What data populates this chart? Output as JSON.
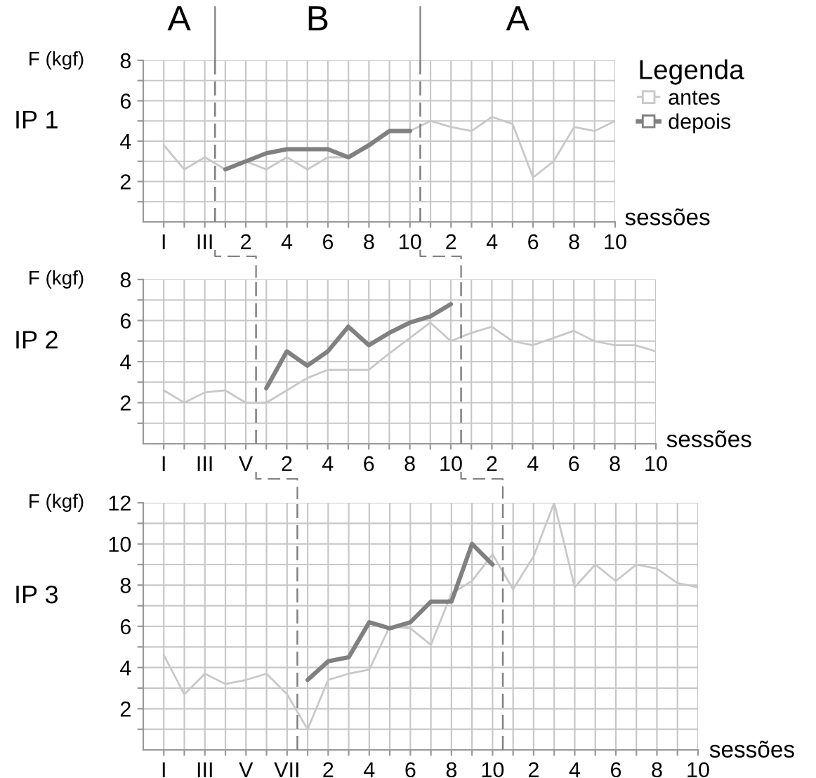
{
  "chart_data": [
    {
      "type": "line",
      "title": "IP 1",
      "ylabel": "F (kgf)",
      "xlabel": "sessões",
      "legend_title": "Legenda",
      "legend": "right",
      "grid": true,
      "line_style": "solid",
      "marker": "none",
      "annotations": [
        "A",
        "B",
        "A"
      ],
      "categories": [
        "I",
        null,
        "III",
        null,
        "2",
        null,
        "4",
        null,
        "6",
        null,
        "8",
        null,
        "10",
        null,
        "2",
        null,
        "4",
        null,
        "6",
        null,
        "8",
        null,
        "10"
      ],
      "ylim": [
        0,
        8
      ],
      "yticks": [
        {
          "value": 1,
          "label": null
        },
        2,
        {
          "value": 3,
          "label": null
        },
        4,
        {
          "value": 5,
          "label": null
        },
        6,
        {
          "value": 7,
          "label": null
        },
        8
      ],
      "series": [
        {
          "name": "antes",
          "color": "#c8c8c8",
          "values": [
            3.8,
            2.6,
            3.2,
            2.6,
            3.0,
            2.6,
            3.2,
            2.6,
            3.2,
            3.2,
            3.7,
            4.5,
            4.5,
            5.0,
            4.7,
            4.5,
            5.2,
            4.85,
            2.2,
            3.0,
            4.7,
            4.5,
            5.0
          ]
        },
        {
          "name": "depois",
          "color": "#808080",
          "values": [
            null,
            null,
            null,
            2.6,
            3.0,
            3.4,
            3.6,
            3.6,
            3.6,
            3.2,
            3.8,
            4.5,
            4.5,
            null,
            null,
            null,
            null,
            null,
            null,
            null,
            null,
            null,
            null
          ]
        }
      ]
    },
    {
      "type": "line",
      "title": "IP 2",
      "ylabel": "F (kgf)",
      "xlabel": "sessões",
      "grid": true,
      "line_style": "solid",
      "marker": "none",
      "categories": [
        "I",
        null,
        "III",
        null,
        "V",
        null,
        "2",
        null,
        "4",
        null,
        "6",
        null,
        "8",
        null,
        "10",
        null,
        "2",
        null,
        "4",
        null,
        "6",
        null,
        "8",
        null,
        "10"
      ],
      "ylim": [
        0,
        8
      ],
      "yticks": [
        {
          "value": 1,
          "label": null
        },
        2,
        {
          "value": 3,
          "label": null
        },
        4,
        {
          "value": 5,
          "label": null
        },
        6,
        {
          "value": 7,
          "label": null
        },
        8
      ],
      "series": [
        {
          "color": "#c8c8c8",
          "values": [
            2.6,
            2.0,
            2.5,
            2.6,
            2.0,
            2.0,
            2.6,
            3.2,
            3.6,
            3.6,
            3.6,
            4.4,
            5.15,
            5.9,
            5.0,
            5.4,
            5.7,
            5.0,
            4.8,
            5.15,
            5.5,
            5.0,
            4.8,
            4.8,
            4.5
          ]
        },
        {
          "color": "#808080",
          "values": [
            null,
            null,
            null,
            null,
            null,
            2.7,
            4.5,
            3.8,
            4.5,
            5.7,
            4.8,
            5.4,
            5.9,
            6.2,
            6.8,
            null,
            null,
            null,
            null,
            null,
            null,
            null,
            null,
            null,
            null
          ]
        }
      ]
    },
    {
      "type": "line",
      "title": "IP 3",
      "ylabel": "F (kgf)",
      "xlabel": "sessões",
      "grid": true,
      "line_style": "solid",
      "marker": "none",
      "categories": [
        "I",
        null,
        "III",
        null,
        "V",
        null,
        "VII",
        null,
        "2",
        null,
        "4",
        null,
        "6",
        null,
        "8",
        null,
        "10",
        null,
        "2",
        null,
        "4",
        null,
        "6",
        null,
        "8",
        null,
        "10"
      ],
      "ylim": [
        0,
        12
      ],
      "yticks": [
        {
          "value": 1,
          "label": null
        },
        2,
        {
          "value": 3,
          "label": null
        },
        4,
        {
          "value": 5,
          "label": null
        },
        6,
        {
          "value": 7,
          "label": null
        },
        8,
        {
          "value": 9,
          "label": null
        },
        10,
        {
          "value": 11,
          "label": null
        },
        12
      ],
      "series": [
        {
          "color": "#c8c8c8",
          "values": [
            4.6,
            2.7,
            3.7,
            3.2,
            3.4,
            3.7,
            2.7,
            1.0,
            3.4,
            3.7,
            3.9,
            6.0,
            5.9,
            5.1,
            7.6,
            8.2,
            9.5,
            7.8,
            9.4,
            12.0,
            7.9,
            9.0,
            8.2,
            9.0,
            8.8,
            8.1,
            7.9
          ]
        },
        {
          "color": "#808080",
          "values": [
            null,
            null,
            null,
            null,
            null,
            null,
            null,
            3.4,
            4.3,
            4.5,
            6.2,
            5.9,
            6.2,
            7.2,
            7.2,
            10.0,
            9.0,
            null,
            null,
            null,
            null,
            null,
            null,
            null,
            null,
            null,
            null
          ]
        }
      ]
    }
  ]
}
